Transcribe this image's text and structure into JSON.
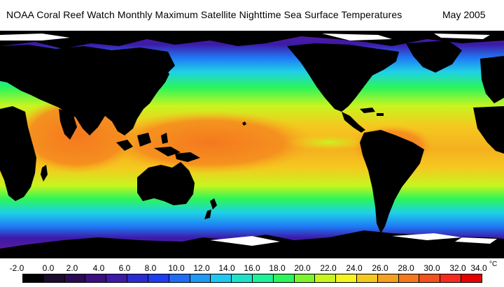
{
  "header": {
    "title": "NOAA Coral Reef Watch Monthly Maximum Satellite Nighttime Sea Surface Temperatures",
    "date": "May 2005"
  },
  "legend": {
    "labels": [
      "-2.0",
      "0.0",
      "2.0",
      "4.0",
      "6.0",
      "8.0",
      "10.0",
      "12.0",
      "14.0",
      "16.0",
      "18.0",
      "20.0",
      "22.0",
      "24.0",
      "26.0",
      "28.0",
      "30.0",
      "32.0",
      "34.0"
    ],
    "unit": "°C",
    "colors": [
      "#000000",
      "#1a0a2e",
      "#2b0a55",
      "#3a0f80",
      "#3d1aa8",
      "#2b2bd0",
      "#1f3cf0",
      "#1f6cf5",
      "#1f9af5",
      "#1fc8f0",
      "#1fe0c8",
      "#1ff09a",
      "#2bf55a",
      "#7af52b",
      "#c8f51f",
      "#f5f51f",
      "#f5c81f",
      "#f5a01f",
      "#f5781f",
      "#f5501f",
      "#f52b1f",
      "#e60000"
    ]
  },
  "colors": {
    "land": "#000000",
    "ice": "#ffffff",
    "warm_pool": "#f58a1f",
    "tropics": "#f5c81f",
    "subtropics": "#c8f51f",
    "temperate": "#2bf55a",
    "cool": "#1fd0e8",
    "cold": "#1f7af5",
    "polar": "#3d1aa8",
    "frozen": "#5a1a9a"
  }
}
